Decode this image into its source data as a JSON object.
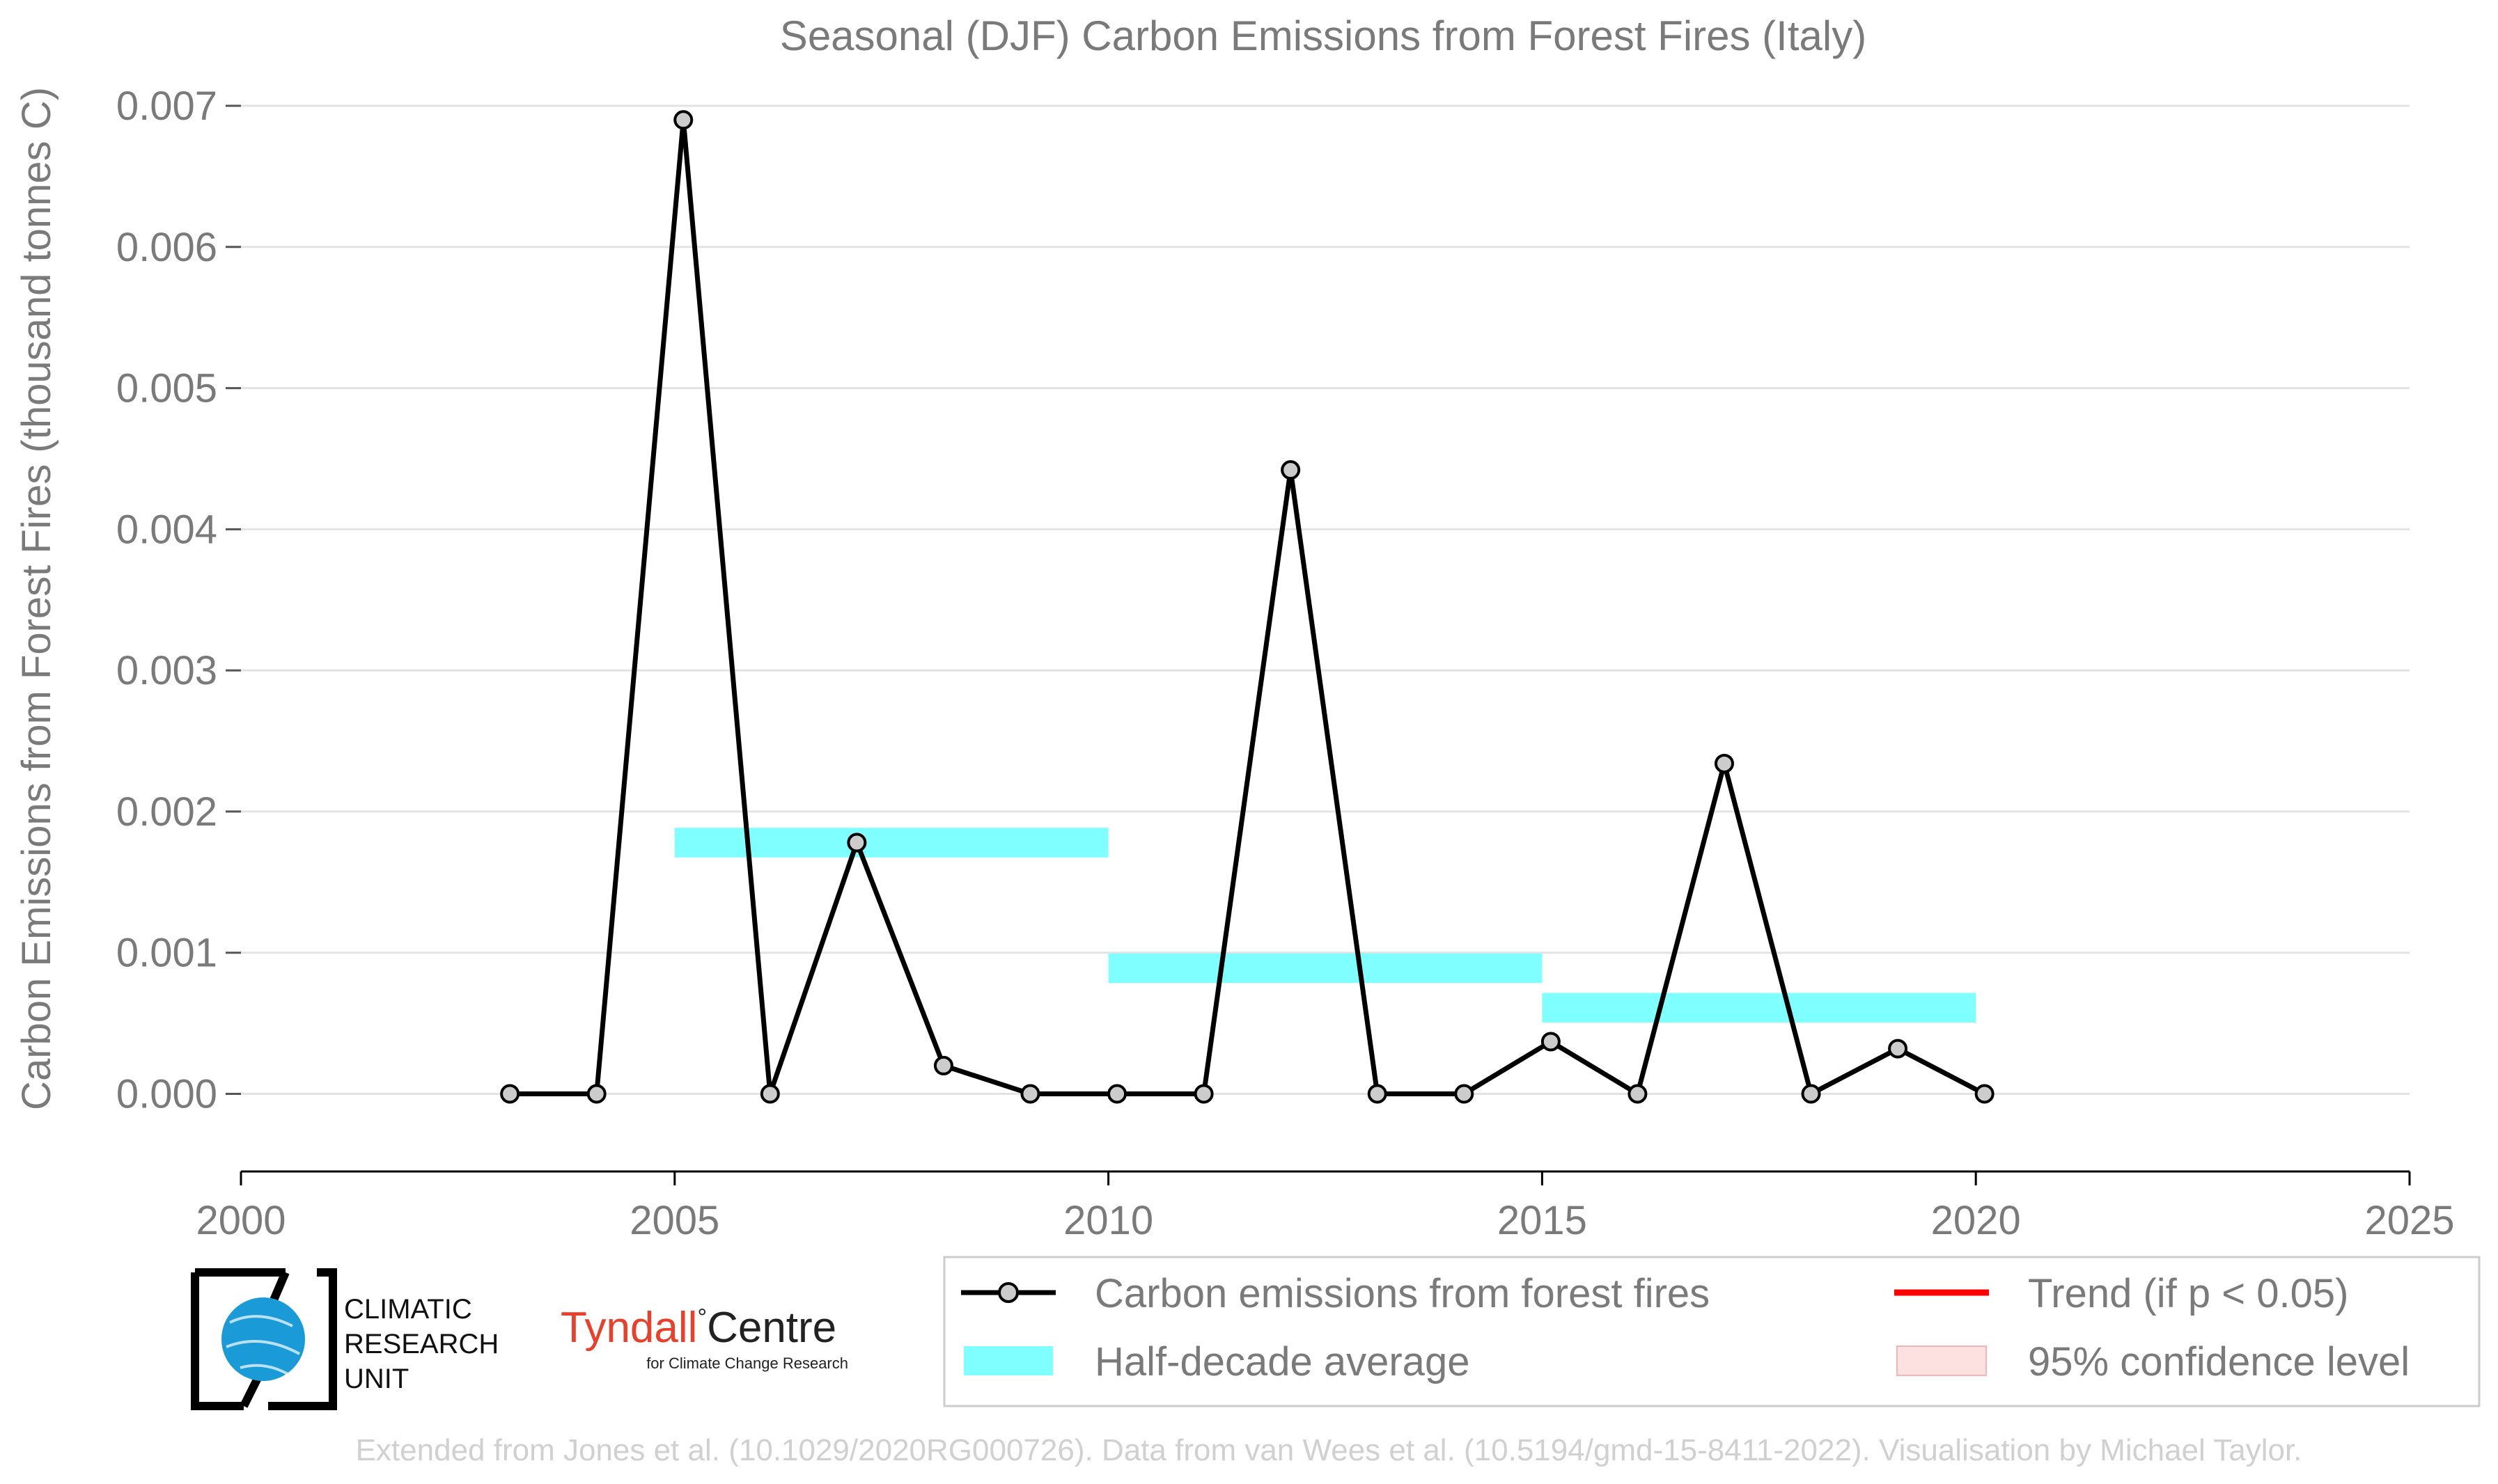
{
  "chart_data": {
    "type": "line",
    "title": "Seasonal (DJF) Carbon Emissions from Forest Fires (Italy)",
    "xlabel": "",
    "ylabel": "Carbon Emissions from Forest Fires (thousand tonnes C)",
    "xlim": [
      2000,
      2025
    ],
    "ylim": [
      -0.00055,
      0.007
    ],
    "x_ticks": [
      "2000",
      "2005",
      "2010",
      "2015",
      "2020",
      "2025"
    ],
    "y_ticks": [
      "0.000",
      "0.001",
      "0.002",
      "0.003",
      "0.004",
      "0.005",
      "0.006",
      "0.007"
    ],
    "grid": true,
    "series": [
      {
        "name": "Carbon emissions from forest fires",
        "color": "#000000",
        "x": [
          2003,
          2004,
          2005,
          2006,
          2007,
          2008,
          2009,
          2010,
          2011,
          2012,
          2013,
          2014,
          2015,
          2016,
          2017,
          2018,
          2019,
          2020
        ],
        "y": [
          0.0,
          0.0,
          0.0069,
          0.0,
          0.00178,
          0.0002,
          0.0,
          0.0,
          0.0,
          0.00442,
          0.0,
          0.0,
          0.00037,
          0.0,
          0.00234,
          0.0,
          0.00032,
          0.0
        ]
      }
    ],
    "half_decade_average": {
      "name": "Half-decade average",
      "color": "#7fffff",
      "segments": [
        {
          "x0": 2005,
          "x1": 2010,
          "y": 0.00178
        },
        {
          "x0": 2010,
          "x1": 2015,
          "y": 0.00089
        },
        {
          "x0": 2015,
          "x1": 2020,
          "y": 0.00061
        }
      ]
    },
    "legend": {
      "placement": "bottom-right",
      "entries": [
        {
          "label": "Carbon emissions from forest fires",
          "kind": "line-marker",
          "color": "#000000"
        },
        {
          "label": "Trend (if p < 0.05)",
          "kind": "line",
          "color": "#ff0000"
        },
        {
          "label": "Half-decade average",
          "kind": "patch",
          "color": "#7fffff"
        },
        {
          "label": "95% confidence level",
          "kind": "patch",
          "color": "#fde0e0"
        }
      ]
    }
  },
  "logos": {
    "cru": {
      "line1": "CLIMATIC",
      "line2": "RESEARCH",
      "line3": "UNIT",
      "color": "#1a9ad6"
    },
    "tyndall": {
      "main_left": "Tyndall",
      "main_right": "Centre",
      "sub": "for Climate Change Research",
      "color": "#e8402a"
    }
  },
  "footer": "Extended from Jones et al. (10.1029/2020RG000726). Data from van Wees et al. (10.5194/gmd-15-8411-2022). Visualisation by Michael Taylor."
}
